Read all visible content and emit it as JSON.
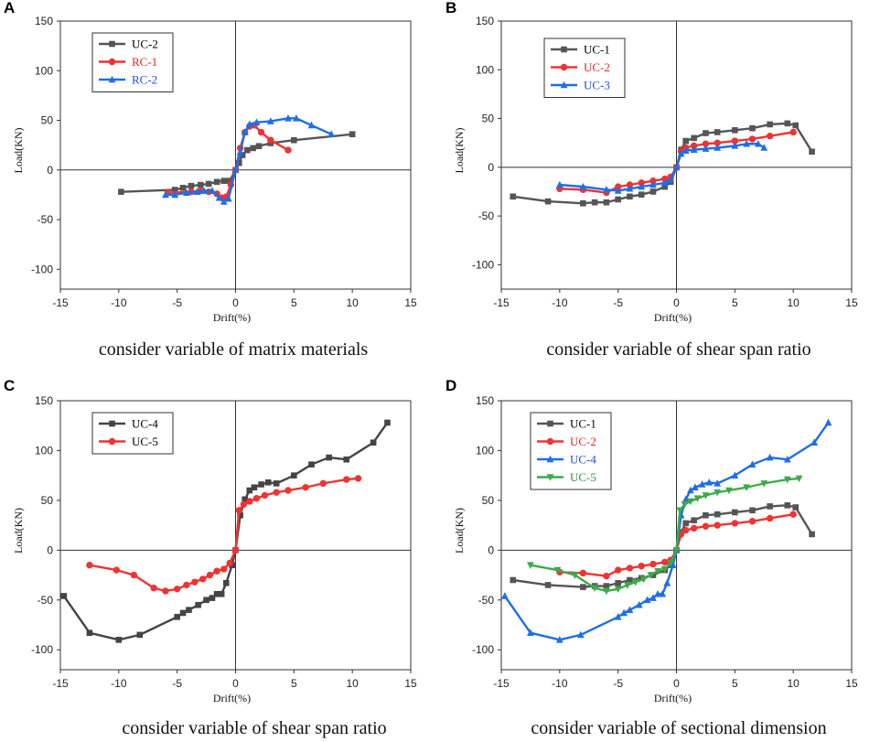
{
  "chart_data": [
    {
      "panel": "A",
      "type": "line",
      "caption": "consider variable of matrix materials",
      "xlabel": "Drift(%)",
      "ylabel": "Load(KN)",
      "xlim": [
        -15,
        15
      ],
      "ylim": [
        -120,
        150
      ],
      "xticks": [
        -15,
        -10,
        -5,
        0,
        5,
        10,
        15
      ],
      "yticks": [
        -100,
        -50,
        0,
        50,
        100,
        150
      ],
      "legend_position": "top-left",
      "series": [
        {
          "name": "UC-2",
          "color": "#555555",
          "text_color": "#000000",
          "marker": "square",
          "x": [
            -9.8,
            -5.2,
            -4.5,
            -3.8,
            -3.0,
            -2.3,
            -1.6,
            -1.0,
            -0.5,
            0,
            0.3,
            0.6,
            1.0,
            1.5,
            2.0,
            3.0,
            5.0,
            10.0
          ],
          "y": [
            -22,
            -20,
            -18,
            -16,
            -15,
            -14,
            -12,
            -11,
            -11,
            0,
            7,
            15,
            20,
            22,
            24,
            27,
            30,
            36
          ]
        },
        {
          "name": "RC-1",
          "color": "#ee3333",
          "text_color": "#ee2222",
          "marker": "circle",
          "x": [
            -5.8,
            -3.8,
            -3.0,
            -2.3,
            -1.6,
            -1.2,
            -0.8,
            -0.4,
            0,
            0.4,
            0.8,
            1.2,
            1.6,
            2.2,
            3.0,
            4.5
          ],
          "y": [
            -23,
            -22,
            -21,
            -22,
            -24,
            -28,
            -27,
            -15,
            0,
            22,
            38,
            44,
            45,
            38,
            30,
            20
          ]
        },
        {
          "name": "RC-2",
          "color": "#1e6ee8",
          "text_color": "#1e4ee0",
          "marker": "triangle",
          "x": [
            -6.0,
            -5.2,
            -4.2,
            -3.3,
            -2.7,
            -2.0,
            -1.4,
            -1.0,
            -0.6,
            0,
            0.4,
            0.8,
            1.2,
            1.8,
            3.0,
            4.5,
            5.2,
            6.5,
            8.2
          ],
          "y": [
            -25,
            -25,
            -23,
            -22,
            -21,
            -21,
            -28,
            -32,
            -29,
            0,
            18,
            38,
            46,
            48,
            49,
            52,
            52,
            45,
            36
          ]
        }
      ]
    },
    {
      "panel": "B",
      "type": "line",
      "caption": "consider variable of shear span ratio",
      "xlabel": "Drift(%)",
      "ylabel": "Load(KN)",
      "xlim": [
        -15,
        15
      ],
      "ylim": [
        -125,
        150
      ],
      "xticks": [
        -15,
        -10,
        -5,
        0,
        5,
        10,
        15
      ],
      "yticks": [
        -100,
        -50,
        0,
        50,
        100,
        150
      ],
      "legend_position": "top-left",
      "series": [
        {
          "name": "UC-1",
          "color": "#555555",
          "text_color": "#000000",
          "marker": "square",
          "x": [
            -14,
            -11,
            -8,
            -7,
            -6,
            -5,
            -4,
            -3,
            -2,
            -1,
            -0.5,
            0,
            0.4,
            0.8,
            1.5,
            2.5,
            3.5,
            5,
            6.5,
            8,
            9.5,
            10.2,
            11.6
          ],
          "y": [
            -30,
            -35,
            -37,
            -36,
            -36,
            -33,
            -30,
            -28,
            -25,
            -20,
            -15,
            0,
            18,
            27,
            30,
            35,
            36,
            38,
            40,
            44,
            45,
            43,
            16
          ]
        },
        {
          "name": "UC-2",
          "color": "#ee3333",
          "text_color": "#ee2222",
          "marker": "circle",
          "x": [
            -10,
            -8,
            -6,
            -5,
            -4,
            -3,
            -2,
            -1,
            -0.5,
            0,
            0.4,
            0.8,
            1.5,
            2.5,
            3.5,
            5,
            6.5,
            8,
            10
          ],
          "y": [
            -22,
            -23,
            -26,
            -20,
            -18,
            -16,
            -14,
            -12,
            -10,
            0,
            16,
            20,
            22,
            24,
            25,
            27,
            29,
            32,
            36
          ]
        },
        {
          "name": "UC-3",
          "color": "#1e6ee8",
          "text_color": "#1e4ee0",
          "marker": "triangle",
          "x": [
            -10,
            -8,
            -6,
            -5,
            -4,
            -3,
            -2,
            -1,
            -0.5,
            0,
            0.4,
            0.8,
            1.5,
            2.5,
            3.5,
            5,
            6,
            7,
            7.5
          ],
          "y": [
            -18,
            -20,
            -23,
            -24,
            -22,
            -20,
            -18,
            -16,
            -13,
            0,
            14,
            17,
            18,
            19,
            20,
            22,
            24,
            24,
            20
          ]
        }
      ]
    },
    {
      "panel": "C",
      "type": "line",
      "caption": "consider variable of shear span ratio",
      "xlabel": "Drift(%)",
      "ylabel": "Load(KN)",
      "xlim": [
        -15,
        15
      ],
      "ylim": [
        -120,
        150
      ],
      "xticks": [
        -15,
        -10,
        -5,
        0,
        5,
        10,
        15
      ],
      "yticks": [
        -100,
        -50,
        0,
        50,
        100,
        150
      ],
      "legend_position": "top-left",
      "series": [
        {
          "name": "UC-4",
          "color": "#444444",
          "text_color": "#000000",
          "marker": "square",
          "x": [
            -14.7,
            -12.5,
            -10,
            -8.2,
            -5,
            -4.5,
            -4,
            -3.2,
            -2.5,
            -2.0,
            -1.6,
            -1.2,
            -0.8,
            -0.3,
            0,
            0.4,
            0.8,
            1.2,
            1.6,
            2.2,
            2.8,
            3.5,
            5.0,
            6.5,
            8.0,
            9.5,
            11.8,
            13.0
          ],
          "y": [
            -46,
            -83,
            -90,
            -85,
            -67,
            -63,
            -60,
            -55,
            -50,
            -48,
            -44,
            -44,
            -33,
            -15,
            0,
            35,
            51,
            60,
            63,
            66,
            68,
            67,
            75,
            86,
            93,
            91,
            108,
            128
          ]
        },
        {
          "name": "UC-5",
          "color": "#ee3333",
          "text_color": "#000000",
          "marker": "circle",
          "x": [
            -12.5,
            -10.2,
            -8.7,
            -7,
            -6,
            -5,
            -4.2,
            -3.5,
            -2.8,
            -2.2,
            -1.6,
            -1.0,
            -0.5,
            0,
            0.3,
            0.7,
            1.2,
            1.8,
            2.5,
            3.5,
            4.5,
            6,
            7.5,
            9.5,
            10.5
          ],
          "y": [
            -15,
            -20,
            -25,
            -38,
            -41,
            -39,
            -35,
            -32,
            -29,
            -25,
            -21,
            -19,
            -13,
            0,
            40,
            46,
            49,
            52,
            55,
            58,
            60,
            63,
            67,
            71,
            72
          ]
        }
      ]
    },
    {
      "panel": "D",
      "type": "line",
      "caption": "consider variable of sectional dimension",
      "xlabel": "Drift(%)",
      "ylabel": "Load(KN)",
      "xlim": [
        -15,
        15
      ],
      "ylim": [
        -120,
        150
      ],
      "xticks": [
        -15,
        -10,
        -5,
        0,
        5,
        10,
        15
      ],
      "yticks": [
        -100,
        -50,
        0,
        50,
        100,
        150
      ],
      "legend_position": "top-left",
      "series": [
        {
          "name": "UC-1",
          "color": "#555555",
          "text_color": "#000000",
          "marker": "square",
          "x": [
            -14,
            -11,
            -8,
            -7,
            -6,
            -5,
            -4,
            -3,
            -2,
            -1,
            -0.5,
            0,
            0.4,
            0.8,
            1.5,
            2.5,
            3.5,
            5,
            6.5,
            8,
            9.5,
            10.2,
            11.6
          ],
          "y": [
            -30,
            -35,
            -37,
            -36,
            -36,
            -33,
            -30,
            -28,
            -25,
            -20,
            -15,
            0,
            18,
            27,
            30,
            35,
            36,
            38,
            40,
            44,
            45,
            43,
            16
          ]
        },
        {
          "name": "UC-2",
          "color": "#ee3333",
          "text_color": "#ee2222",
          "marker": "circle",
          "x": [
            -10,
            -8,
            -6,
            -5,
            -4,
            -3,
            -2,
            -1,
            -0.5,
            0,
            0.4,
            0.8,
            1.5,
            2.5,
            3.5,
            5,
            6.5,
            8,
            10
          ],
          "y": [
            -22,
            -23,
            -26,
            -20,
            -18,
            -16,
            -14,
            -12,
            -10,
            0,
            16,
            20,
            22,
            24,
            25,
            27,
            29,
            32,
            36
          ]
        },
        {
          "name": "UC-4",
          "color": "#1e6ee8",
          "text_color": "#1e4ee0",
          "marker": "triangle",
          "x": [
            -14.7,
            -12.5,
            -10,
            -8.2,
            -5,
            -4.5,
            -4,
            -3.2,
            -2.5,
            -2.0,
            -1.6,
            -1.2,
            -0.8,
            -0.3,
            0,
            0.4,
            0.8,
            1.2,
            1.6,
            2.2,
            2.8,
            3.5,
            5.0,
            6.5,
            8.0,
            9.5,
            11.8,
            13.0
          ],
          "y": [
            -46,
            -83,
            -90,
            -85,
            -67,
            -63,
            -60,
            -55,
            -50,
            -48,
            -44,
            -44,
            -33,
            -15,
            0,
            35,
            51,
            60,
            63,
            66,
            68,
            67,
            75,
            86,
            93,
            91,
            108,
            128
          ]
        },
        {
          "name": "UC-5",
          "color": "#3daa4a",
          "text_color": "#2a9a3a",
          "marker": "triangle-down",
          "x": [
            -12.5,
            -10.2,
            -8.7,
            -7,
            -6,
            -5,
            -4.2,
            -3.5,
            -2.8,
            -2.2,
            -1.6,
            -1.0,
            -0.5,
            0,
            0.3,
            0.7,
            1.2,
            1.8,
            2.5,
            3.5,
            4.5,
            6,
            7.5,
            9.5,
            10.5
          ],
          "y": [
            -15,
            -20,
            -25,
            -38,
            -41,
            -39,
            -35,
            -32,
            -29,
            -25,
            -21,
            -19,
            -13,
            0,
            40,
            46,
            49,
            52,
            55,
            58,
            60,
            63,
            67,
            71,
            72
          ]
        }
      ]
    }
  ]
}
